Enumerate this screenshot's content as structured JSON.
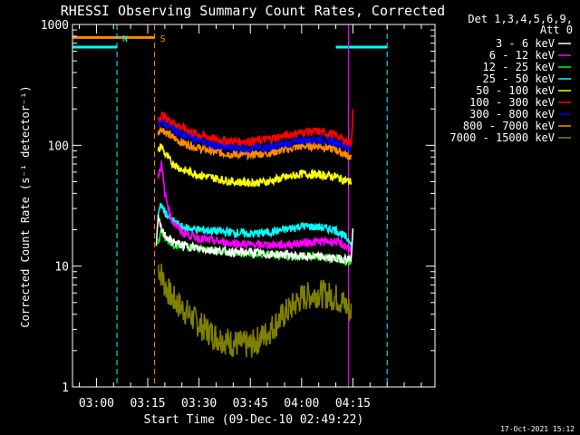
{
  "chart_data": {
    "type": "line",
    "title": "RHESSI Observing Summary Count Rates, Corrected",
    "xlabel": "Start Time (09-Dec-10 02:49:22)",
    "ylabel": "Corrected Count Rate (s⁻¹ detector⁻¹)",
    "y_scale": "log",
    "ylim": [
      1,
      1000
    ],
    "xlim_minutes": [
      -7,
      99
    ],
    "x_ticks": [
      {
        "label": "03:00",
        "minute": 0
      },
      {
        "label": "03:15",
        "minute": 15
      },
      {
        "label": "03:30",
        "minute": 30
      },
      {
        "label": "03:45",
        "minute": 45
      },
      {
        "label": "04:00",
        "minute": 60
      },
      {
        "label": "04:15",
        "minute": 75
      }
    ],
    "y_ticks": [
      {
        "label": "1",
        "value": 1
      },
      {
        "label": "10",
        "value": 10
      },
      {
        "label": "100",
        "value": 100
      },
      {
        "label": "1000",
        "value": 1000
      }
    ],
    "legend_header": [
      "Det 1,3,4,5,6,9,",
      "Att 0"
    ],
    "series": [
      {
        "name": "3 - 6 keV",
        "color": "#ffffff",
        "t": [
          17.5,
          18,
          19,
          20,
          22,
          25,
          30,
          35,
          40,
          45,
          50,
          55,
          60,
          65,
          70,
          72,
          74.5,
          75
        ],
        "values": [
          14,
          25,
          20,
          18,
          16,
          15,
          14,
          13.5,
          13,
          13,
          12.5,
          12.5,
          12,
          12,
          11.5,
          11.5,
          11.5,
          20
        ]
      },
      {
        "name": "6 - 12 keV",
        "color": "#ff00ff",
        "t": [
          18,
          19,
          20,
          22,
          25,
          30,
          35,
          40,
          45,
          50,
          55,
          60,
          65,
          70,
          72,
          74.5
        ],
        "values": [
          55,
          70,
          40,
          24,
          19,
          17,
          16,
          15.5,
          15,
          15,
          15,
          15.5,
          16,
          16,
          15,
          14
        ]
      },
      {
        "name": "12 - 25 keV",
        "color": "#00ff00",
        "t": [
          18,
          19,
          20,
          22,
          25,
          30,
          35,
          40,
          45,
          50,
          55,
          60,
          65,
          70,
          72,
          74.5
        ],
        "values": [
          15,
          20,
          17,
          15.5,
          14.5,
          14,
          13.5,
          13,
          12.5,
          12.5,
          12,
          12,
          12,
          11.5,
          11,
          11
        ]
      },
      {
        "name": "25 - 50 keV",
        "color": "#00ffff",
        "t": [
          18,
          19,
          20,
          22,
          25,
          30,
          35,
          40,
          45,
          50,
          55,
          60,
          65,
          70,
          72,
          74.5
        ],
        "values": [
          27,
          32,
          28,
          24,
          21,
          20,
          19.5,
          19,
          18.5,
          19,
          20,
          21.5,
          21,
          20,
          18,
          16
        ]
      },
      {
        "name": "50 - 100 keV",
        "color": "#ffff00",
        "t": [
          18,
          19,
          20,
          22,
          25,
          30,
          35,
          40,
          45,
          50,
          55,
          60,
          65,
          70,
          72,
          74.5
        ],
        "values": [
          88,
          100,
          85,
          72,
          63,
          57,
          53,
          50,
          49,
          50,
          54,
          58,
          57,
          55,
          52,
          50
        ]
      },
      {
        "name": "100 - 300 keV",
        "color": "#ff0000",
        "t": [
          18,
          19,
          20,
          22,
          25,
          30,
          35,
          40,
          45,
          50,
          55,
          60,
          65,
          70,
          72,
          74.5,
          75
        ],
        "values": [
          165,
          180,
          170,
          158,
          140,
          122,
          112,
          108,
          108,
          112,
          120,
          128,
          130,
          122,
          112,
          104,
          190
        ]
      },
      {
        "name": "300 - 800 keV",
        "color": "#0000ff",
        "t": [
          18,
          19,
          20,
          22,
          25,
          30,
          35,
          40,
          45,
          50,
          55,
          60,
          65,
          70,
          72,
          74.5
        ],
        "values": [
          145,
          160,
          150,
          138,
          124,
          110,
          100,
          95,
          94,
          96,
          102,
          110,
          112,
          106,
          100,
          95
        ]
      },
      {
        "name": "800 - 7000 keV",
        "color": "#ff8c00",
        "t": [
          18,
          19,
          20,
          22,
          25,
          30,
          35,
          40,
          45,
          50,
          55,
          60,
          65,
          70,
          72,
          74.5
        ],
        "values": [
          125,
          140,
          130,
          118,
          105,
          95,
          88,
          84,
          84,
          86,
          92,
          98,
          99,
          92,
          86,
          80
        ]
      },
      {
        "name": "7000 - 15000 keV",
        "color": "#808000",
        "t": [
          18,
          19,
          20,
          22,
          25,
          30,
          35,
          40,
          45,
          50,
          55,
          60,
          65,
          70,
          72,
          74.5
        ],
        "values": [
          10,
          8.5,
          7,
          5.5,
          4.5,
          3.3,
          2.6,
          2.3,
          2.2,
          2.8,
          4,
          5.5,
          6,
          5.5,
          5,
          4.2
        ]
      }
    ],
    "annotations": [
      {
        "label": "N",
        "color": "#00ffff",
        "style": "dashed",
        "t": 6
      },
      {
        "label": "S",
        "color": "#ff8c00",
        "style": "dashed",
        "t": 17
      },
      {
        "label": "",
        "color": "#00ffff",
        "style": "dashed",
        "t": 85
      },
      {
        "label": "",
        "color": "#ff00ff",
        "style": "solid",
        "t": 73.7
      }
    ],
    "flags": [
      {
        "name": "night",
        "color": "#00ffff",
        "t_start": -7,
        "t_end": 6,
        "level": 650
      },
      {
        "name": "saa",
        "color": "#ff8c00",
        "t_start": -7,
        "t_end": 17,
        "level": 780
      },
      {
        "name": "night-2",
        "color": "#00ffff",
        "t_start": 70,
        "t_end": 85,
        "level": 650
      }
    ],
    "footer": "17-Oct-2021 15:12"
  }
}
